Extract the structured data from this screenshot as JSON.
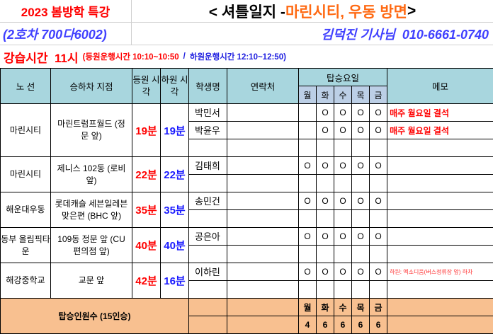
{
  "header": {
    "season": "2023 봄방학 특강",
    "title_prefix": "< 셔틀일지 - ",
    "title_area": "마린시티, 우동 방면",
    "title_suffix": " >",
    "vehicle": "(2호차 700다6002)",
    "driver": "김덕진 기사님  010-6661-0740",
    "class_time": "강습시간  11시",
    "pickup_time": "(등원운행시간 10:10~10:50",
    "separator": "/",
    "dropoff_time": "하원운행시간 12:10~12:50)"
  },
  "columns": {
    "route": "노 선",
    "stop": "승하차 지점",
    "pickup": "등원 시각",
    "dropoff": "하원 시각",
    "student": "학생명",
    "contact": "연락처",
    "days_group": "탑승요일",
    "days": [
      "월",
      "화",
      "수",
      "목",
      "금"
    ],
    "memo": "메모"
  },
  "groups": [
    {
      "route": "마린시티",
      "stop": "마린트럼프월드 (정문 앞)",
      "pickup": "19분",
      "dropoff": "19분",
      "rows": [
        {
          "student": "박민서",
          "days": [
            "",
            "O",
            "O",
            "O",
            "O"
          ],
          "memo": "매주 월요일 결석"
        },
        {
          "student": "박윤우",
          "days": [
            "",
            "O",
            "O",
            "O",
            "O"
          ],
          "memo": "매주 월요일 결석"
        },
        {
          "student": "",
          "days": [
            "",
            "",
            "",
            "",
            ""
          ],
          "memo": ""
        }
      ]
    },
    {
      "route": "마린시티",
      "stop": "제니스 102동 (로비 앞)",
      "pickup": "22분",
      "dropoff": "22분",
      "rows": [
        {
          "student": "김태희",
          "days": [
            "O",
            "O",
            "O",
            "O",
            "O"
          ],
          "memo": ""
        },
        {
          "student": "",
          "days": [
            "",
            "",
            "",
            "",
            ""
          ],
          "memo": ""
        }
      ]
    },
    {
      "route": "해운대우동",
      "stop": "롯데캐슬 세븐일레븐 맞은편 (BHC 앞)",
      "pickup": "35분",
      "dropoff": "35분",
      "rows": [
        {
          "student": "송민건",
          "days": [
            "O",
            "O",
            "O",
            "O",
            "O"
          ],
          "memo": ""
        },
        {
          "student": "",
          "days": [
            "",
            "",
            "",
            "",
            ""
          ],
          "memo": ""
        }
      ]
    },
    {
      "route": "동부 올림픽타운",
      "stop": "109동 정문 앞 (CU편의점 앞)",
      "pickup": "40분",
      "dropoff": "40분",
      "rows": [
        {
          "student": "공은아",
          "days": [
            "O",
            "O",
            "O",
            "O",
            "O"
          ],
          "memo": ""
        },
        {
          "student": "",
          "days": [
            "",
            "",
            "",
            "",
            ""
          ],
          "memo": ""
        }
      ]
    },
    {
      "route": "해강중학교",
      "stop": "교문 앞",
      "pickup": "42분",
      "dropoff": "16분",
      "rows": [
        {
          "student": "이하린",
          "days": [
            "O",
            "O",
            "O",
            "O",
            "O"
          ],
          "memo": "하원: 엑소디움(버스정류장 앞) 하차",
          "small": true
        },
        {
          "student": "",
          "days": [
            "",
            "",
            "",
            "",
            ""
          ],
          "memo": ""
        }
      ]
    }
  ],
  "footer": {
    "label": "탑승인원수 (15인승)",
    "days": [
      "월",
      "화",
      "수",
      "목",
      "금"
    ],
    "counts": [
      "4",
      "6",
      "6",
      "6",
      "6"
    ]
  }
}
